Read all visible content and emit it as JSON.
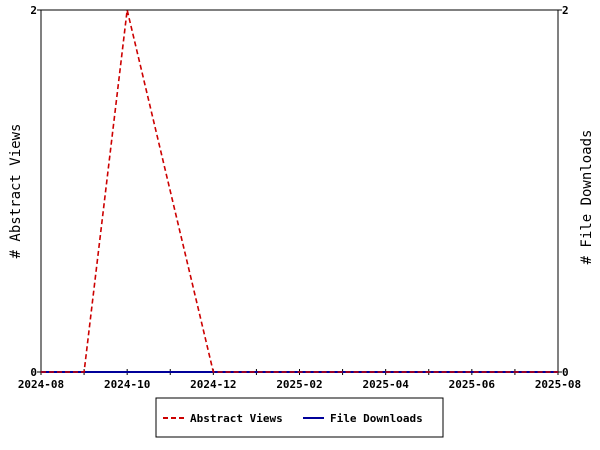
{
  "chart_data": {
    "type": "line",
    "x": [
      "2024-08",
      "2024-09",
      "2024-10",
      "2024-11",
      "2024-12",
      "2025-01",
      "2025-02",
      "2025-03",
      "2025-04",
      "2025-05",
      "2025-06",
      "2025-07",
      "2025-08"
    ],
    "x_tick_labels": [
      "2024-08",
      "2024-10",
      "2024-12",
      "2025-02",
      "2025-04",
      "2025-06",
      "2025-08"
    ],
    "series": [
      {
        "name": "Abstract Views",
        "axis": "left",
        "color": "#cc0000",
        "dash": "dashed",
        "values": [
          0,
          0,
          2,
          1,
          0,
          0,
          0,
          0,
          0,
          0,
          0,
          0,
          0
        ]
      },
      {
        "name": "File Downloads",
        "axis": "right",
        "color": "#000099",
        "dash": "solid",
        "values": [
          0,
          0,
          0,
          0,
          0,
          0,
          0,
          0,
          0,
          0,
          0,
          0,
          0
        ]
      }
    ],
    "ylabel_left": "# Abstract Views",
    "ylabel_right": "# File Downloads",
    "ylim_left": [
      0,
      2
    ],
    "ylim_right": [
      0,
      2
    ],
    "y_tick_labels_left": [
      "0",
      "2"
    ],
    "y_tick_labels_right": [
      "0",
      "2"
    ],
    "grid": false,
    "legend_position": "bottom-center"
  }
}
